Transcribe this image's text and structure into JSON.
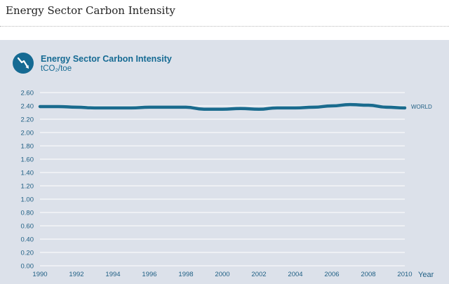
{
  "page": {
    "title": "Energy Sector Carbon Intensity"
  },
  "icon": "declining-trend-icon",
  "colors": {
    "accent": "#156a93",
    "line": "#1a6b8e",
    "panel": "#dce1ea",
    "grid": "#ffffff"
  },
  "chart_data": {
    "type": "line",
    "title": "Energy Sector Carbon Intensity",
    "ylabel": "tCO₂/toe",
    "xlabel": "Year",
    "ylim": [
      0,
      2.6
    ],
    "xlim": [
      1990,
      2010
    ],
    "y_ticks": [
      "0.00",
      "0.20",
      "0.40",
      "0.60",
      "0.80",
      "1.00",
      "1.20",
      "1.40",
      "1.60",
      "1.80",
      "2.00",
      "2.20",
      "2.40",
      "2.60"
    ],
    "x_ticks": [
      "1990",
      "1992",
      "1994",
      "1996",
      "1998",
      "2000",
      "2002",
      "2004",
      "2006",
      "2008",
      "2010"
    ],
    "grid": true,
    "series": [
      {
        "name": "WORLD",
        "x": [
          1990,
          1991,
          1992,
          1993,
          1994,
          1995,
          1996,
          1997,
          1998,
          1999,
          2000,
          2001,
          2002,
          2003,
          2004,
          2005,
          2006,
          2007,
          2008,
          2009,
          2010
        ],
        "values": [
          2.39,
          2.39,
          2.38,
          2.37,
          2.37,
          2.37,
          2.38,
          2.38,
          2.38,
          2.35,
          2.35,
          2.36,
          2.35,
          2.37,
          2.37,
          2.38,
          2.4,
          2.42,
          2.41,
          2.38,
          2.37
        ]
      }
    ]
  }
}
